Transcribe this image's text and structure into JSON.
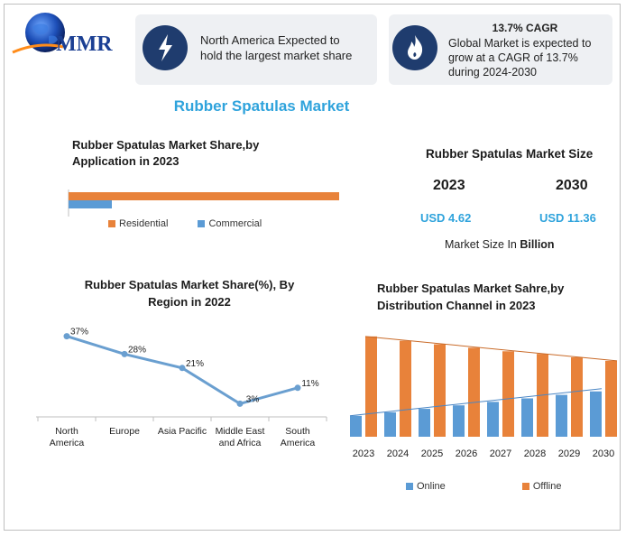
{
  "logo": {
    "text": "MMR"
  },
  "cards": [
    {
      "icon": "lightning-icon",
      "text": "North America Expected to hold the largest market share"
    },
    {
      "icon": "fire-icon",
      "heading": "13.7% CAGR",
      "text": "Global Market is expected to grow at a CAGR of 13.7% during 2024-2030"
    }
  ],
  "main_title": "Rubber Spatulas Market",
  "market_size": {
    "title": "Rubber Spatulas Market Size",
    "year1": "2023",
    "value1": "USD 4.62",
    "year2": "2030",
    "value2": "USD 11.36",
    "note_prefix": "Market Size In ",
    "note_unit": "Billion"
  },
  "colors": {
    "orange": "#e8823a",
    "blue": "#5b9bd5",
    "line_blue": "#6a9fd0",
    "title_blue": "#2fa3dc",
    "card_bg": "#eef0f3",
    "icon_bg": "#1f3c6e"
  },
  "chart_data": [
    {
      "type": "bar",
      "title": "Rubber Spatulas Market Share,by Application in 2023",
      "orientation": "horizontal",
      "series": [
        {
          "name": "Residential",
          "values": [
            100
          ]
        },
        {
          "name": "Commercial",
          "values": [
            16
          ]
        }
      ],
      "legend": "bottom"
    },
    {
      "type": "line",
      "title": "Rubber Spatulas Market Share(%), By Region in 2022",
      "categories": [
        "North America",
        "Europe",
        "Asia Pacific",
        "Middle East and Africa",
        "South America"
      ],
      "values": [
        37,
        28,
        21,
        3,
        11
      ],
      "labels": [
        "37%",
        "28%",
        "21%",
        "3%",
        "11%"
      ],
      "ylim": [
        0,
        40
      ]
    },
    {
      "type": "bar",
      "title": "Rubber Spatulas Market Sahre,by Distribution Channel in 2023",
      "categories": [
        "2023",
        "2024",
        "2025",
        "2026",
        "2027",
        "2028",
        "2029",
        "2030"
      ],
      "series": [
        {
          "name": "Online",
          "values": [
            24,
            28,
            32,
            36,
            40,
            44,
            48,
            52
          ]
        },
        {
          "name": "Offline",
          "values": [
            115,
            110,
            106,
            102,
            98,
            95,
            91,
            87
          ]
        }
      ],
      "ylim": [
        0,
        120
      ],
      "legend": "bottom"
    }
  ]
}
